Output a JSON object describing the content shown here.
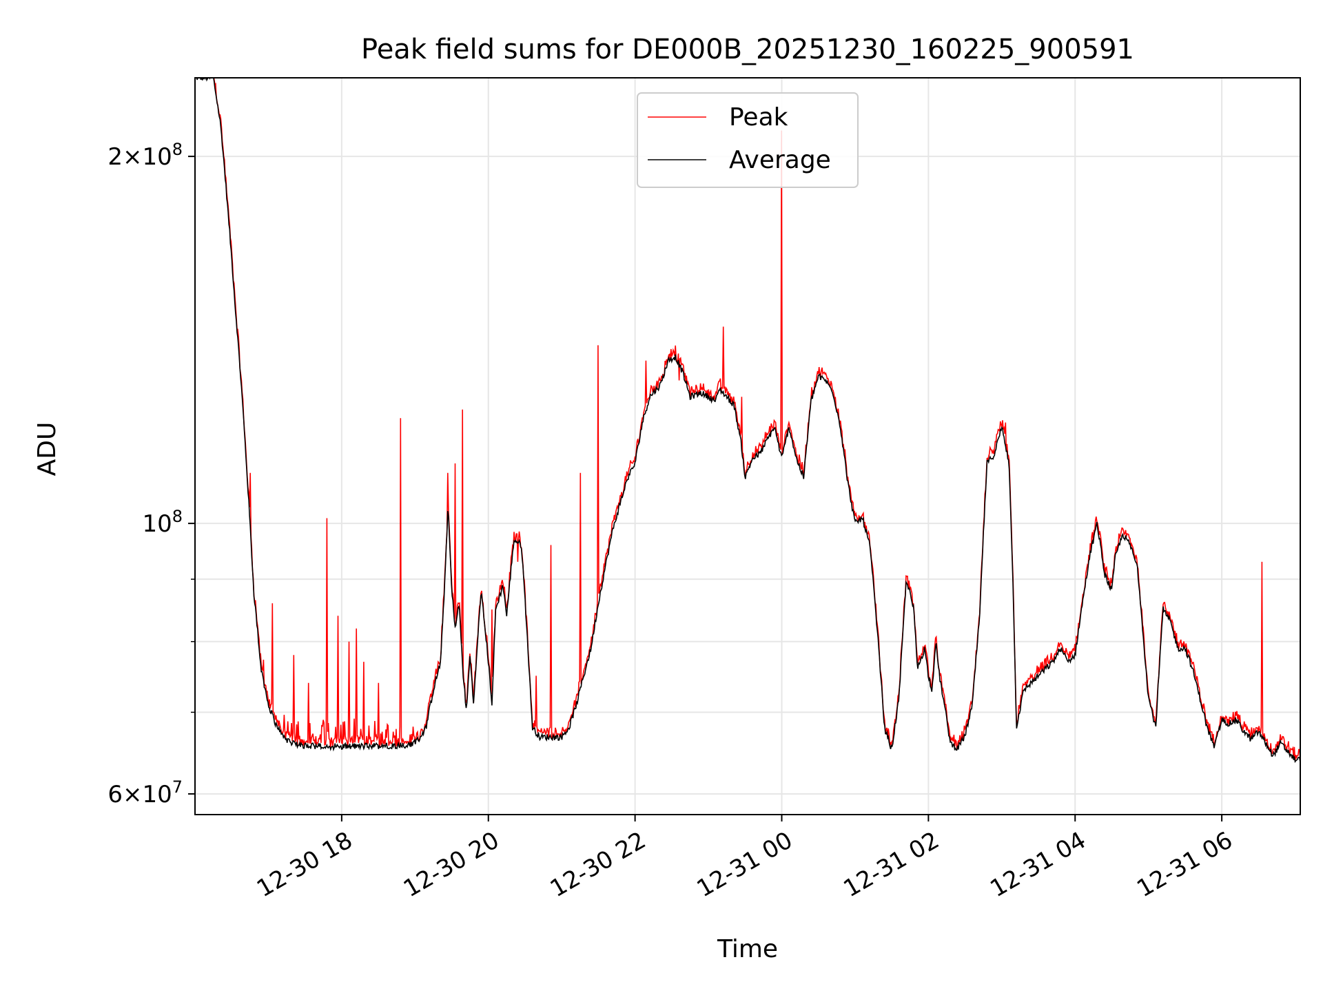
{
  "chart_data": {
    "type": "line",
    "title": "Peak field sums for DE000B_20251230_160225_900591",
    "xlabel": "Time",
    "ylabel": "ADU",
    "y_scale": "log",
    "grid": true,
    "legend_position": "top-center",
    "x_unit": "hours since 12-30 16:00",
    "x_range": [
      0.0,
      15.07
    ],
    "ylim": [
      57700000,
      232000000
    ],
    "x_ticks": [
      {
        "x": 2,
        "label": "12-30 18"
      },
      {
        "x": 4,
        "label": "12-30 20"
      },
      {
        "x": 6,
        "label": "12-30 22"
      },
      {
        "x": 8,
        "label": "12-31 00"
      },
      {
        "x": 10,
        "label": "12-31 02"
      },
      {
        "x": 12,
        "label": "12-31 04"
      },
      {
        "x": 14,
        "label": "12-31 06"
      }
    ],
    "y_major_ticks": [
      {
        "value": 60000000,
        "base": "6×10",
        "exp": "7"
      },
      {
        "value": 100000000,
        "base": "10",
        "exp": "8"
      },
      {
        "value": 200000000,
        "base": "2×10",
        "exp": "8"
      }
    ],
    "y_minor_ticks": [
      70000000,
      80000000,
      90000000
    ],
    "series": [
      {
        "name": "Peak",
        "color": "#ff0000"
      },
      {
        "name": "Average",
        "color": "#000000"
      }
    ],
    "average_points": [
      [
        0.0,
        232000000
      ],
      [
        0.25,
        232000000
      ],
      [
        0.35,
        212000000
      ],
      [
        0.45,
        180000000
      ],
      [
        0.55,
        150000000
      ],
      [
        0.65,
        125000000
      ],
      [
        0.7,
        112000000
      ],
      [
        0.8,
        88000000
      ],
      [
        0.9,
        76000000
      ],
      [
        1.0,
        71000000
      ],
      [
        1.1,
        68500000
      ],
      [
        1.2,
        67000000
      ],
      [
        1.3,
        66000000
      ],
      [
        1.5,
        65700000
      ],
      [
        2.0,
        65600000
      ],
      [
        2.5,
        65700000
      ],
      [
        2.95,
        65800000
      ],
      [
        3.05,
        66500000
      ],
      [
        3.15,
        68000000
      ],
      [
        3.25,
        73000000
      ],
      [
        3.35,
        77000000
      ],
      [
        3.4,
        88000000
      ],
      [
        3.45,
        103000000
      ],
      [
        3.5,
        88000000
      ],
      [
        3.55,
        82000000
      ],
      [
        3.6,
        86000000
      ],
      [
        3.65,
        76000000
      ],
      [
        3.7,
        70000000
      ],
      [
        3.75,
        78000000
      ],
      [
        3.8,
        71000000
      ],
      [
        3.9,
        88000000
      ],
      [
        4.0,
        77000000
      ],
      [
        4.05,
        71000000
      ],
      [
        4.1,
        85000000
      ],
      [
        4.2,
        89000000
      ],
      [
        4.25,
        84000000
      ],
      [
        4.35,
        97000000
      ],
      [
        4.45,
        96000000
      ],
      [
        4.55,
        77000000
      ],
      [
        4.6,
        68000000
      ],
      [
        4.7,
        66800000
      ],
      [
        5.0,
        66800000
      ],
      [
        5.1,
        68000000
      ],
      [
        5.2,
        71000000
      ],
      [
        5.4,
        79000000
      ],
      [
        5.5,
        86000000
      ],
      [
        5.7,
        99000000
      ],
      [
        5.9,
        109000000
      ],
      [
        6.0,
        112000000
      ],
      [
        6.1,
        121000000
      ],
      [
        6.2,
        127000000
      ],
      [
        6.35,
        130000000
      ],
      [
        6.45,
        136000000
      ],
      [
        6.55,
        137000000
      ],
      [
        6.65,
        133000000
      ],
      [
        6.75,
        127000000
      ],
      [
        6.9,
        128000000
      ],
      [
        7.0,
        127000000
      ],
      [
        7.1,
        126000000
      ],
      [
        7.15,
        129000000
      ],
      [
        7.25,
        127000000
      ],
      [
        7.35,
        125000000
      ],
      [
        7.45,
        116000000
      ],
      [
        7.5,
        109000000
      ],
      [
        7.6,
        113000000
      ],
      [
        7.7,
        114000000
      ],
      [
        7.8,
        117000000
      ],
      [
        7.9,
        120000000
      ],
      [
        8.0,
        113000000
      ],
      [
        8.1,
        120000000
      ],
      [
        8.2,
        113000000
      ],
      [
        8.3,
        109000000
      ],
      [
        8.4,
        126000000
      ],
      [
        8.5,
        132000000
      ],
      [
        8.6,
        131000000
      ],
      [
        8.7,
        128000000
      ],
      [
        8.8,
        120000000
      ],
      [
        8.9,
        108000000
      ],
      [
        9.0,
        100000000
      ],
      [
        9.1,
        101000000
      ],
      [
        9.2,
        96000000
      ],
      [
        9.3,
        82000000
      ],
      [
        9.4,
        68000000
      ],
      [
        9.5,
        65200000
      ],
      [
        9.6,
        72000000
      ],
      [
        9.7,
        90000000
      ],
      [
        9.8,
        85000000
      ],
      [
        9.85,
        76000000
      ],
      [
        9.95,
        79000000
      ],
      [
        10.0,
        75000000
      ],
      [
        10.05,
        73000000
      ],
      [
        10.1,
        80000000
      ],
      [
        10.15,
        75000000
      ],
      [
        10.2,
        72000000
      ],
      [
        10.3,
        66000000
      ],
      [
        10.4,
        65400000
      ],
      [
        10.5,
        67000000
      ],
      [
        10.6,
        71000000
      ],
      [
        10.7,
        84000000
      ],
      [
        10.8,
        112000000
      ],
      [
        10.9,
        114000000
      ],
      [
        11.0,
        120000000
      ],
      [
        11.1,
        112000000
      ],
      [
        11.2,
        68000000
      ],
      [
        11.3,
        73000000
      ],
      [
        11.4,
        74000000
      ],
      [
        11.5,
        75000000
      ],
      [
        11.6,
        76000000
      ],
      [
        11.7,
        77000000
      ],
      [
        11.8,
        79000000
      ],
      [
        11.9,
        77000000
      ],
      [
        12.0,
        78000000
      ],
      [
        12.1,
        86000000
      ],
      [
        12.2,
        94000000
      ],
      [
        12.3,
        100000000
      ],
      [
        12.4,
        91000000
      ],
      [
        12.5,
        88000000
      ],
      [
        12.55,
        94000000
      ],
      [
        12.6,
        96000000
      ],
      [
        12.65,
        98000000
      ],
      [
        12.75,
        96000000
      ],
      [
        12.85,
        92000000
      ],
      [
        12.95,
        78000000
      ],
      [
        13.0,
        72000000
      ],
      [
        13.1,
        68000000
      ],
      [
        13.2,
        85000000
      ],
      [
        13.3,
        83000000
      ],
      [
        13.4,
        79000000
      ],
      [
        13.5,
        79000000
      ],
      [
        13.6,
        76000000
      ],
      [
        13.7,
        72000000
      ],
      [
        13.8,
        68000000
      ],
      [
        13.9,
        65500000
      ],
      [
        14.0,
        69000000
      ],
      [
        14.1,
        68500000
      ],
      [
        14.2,
        69000000
      ],
      [
        14.3,
        67500000
      ],
      [
        14.4,
        66500000
      ],
      [
        14.5,
        67500000
      ],
      [
        14.6,
        66000000
      ],
      [
        14.7,
        64500000
      ],
      [
        14.8,
        66000000
      ],
      [
        14.9,
        65000000
      ],
      [
        15.0,
        64000000
      ],
      [
        15.07,
        64000000
      ]
    ],
    "peak_spikes": [
      [
        0.75,
        110000000
      ],
      [
        1.05,
        86000000
      ],
      [
        1.35,
        78000000
      ],
      [
        1.55,
        74000000
      ],
      [
        1.75,
        69000000
      ],
      [
        1.8,
        101000000
      ],
      [
        1.95,
        84000000
      ],
      [
        2.1,
        80000000
      ],
      [
        2.2,
        82000000
      ],
      [
        2.3,
        77000000
      ],
      [
        2.5,
        74000000
      ],
      [
        2.8,
        122000000
      ],
      [
        3.45,
        110000000
      ],
      [
        3.55,
        112000000
      ],
      [
        3.65,
        124000000
      ],
      [
        4.05,
        85000000
      ],
      [
        4.4,
        93000000
      ],
      [
        4.65,
        75000000
      ],
      [
        4.85,
        96000000
      ],
      [
        5.25,
        110000000
      ],
      [
        5.5,
        140000000
      ],
      [
        6.15,
        136000000
      ],
      [
        6.6,
        131000000
      ],
      [
        7.2,
        145000000
      ],
      [
        7.45,
        127000000
      ],
      [
        8.0,
        210000000
      ],
      [
        8.95,
        104000000
      ],
      [
        11.05,
        121000000
      ],
      [
        14.55,
        93000000
      ]
    ]
  }
}
